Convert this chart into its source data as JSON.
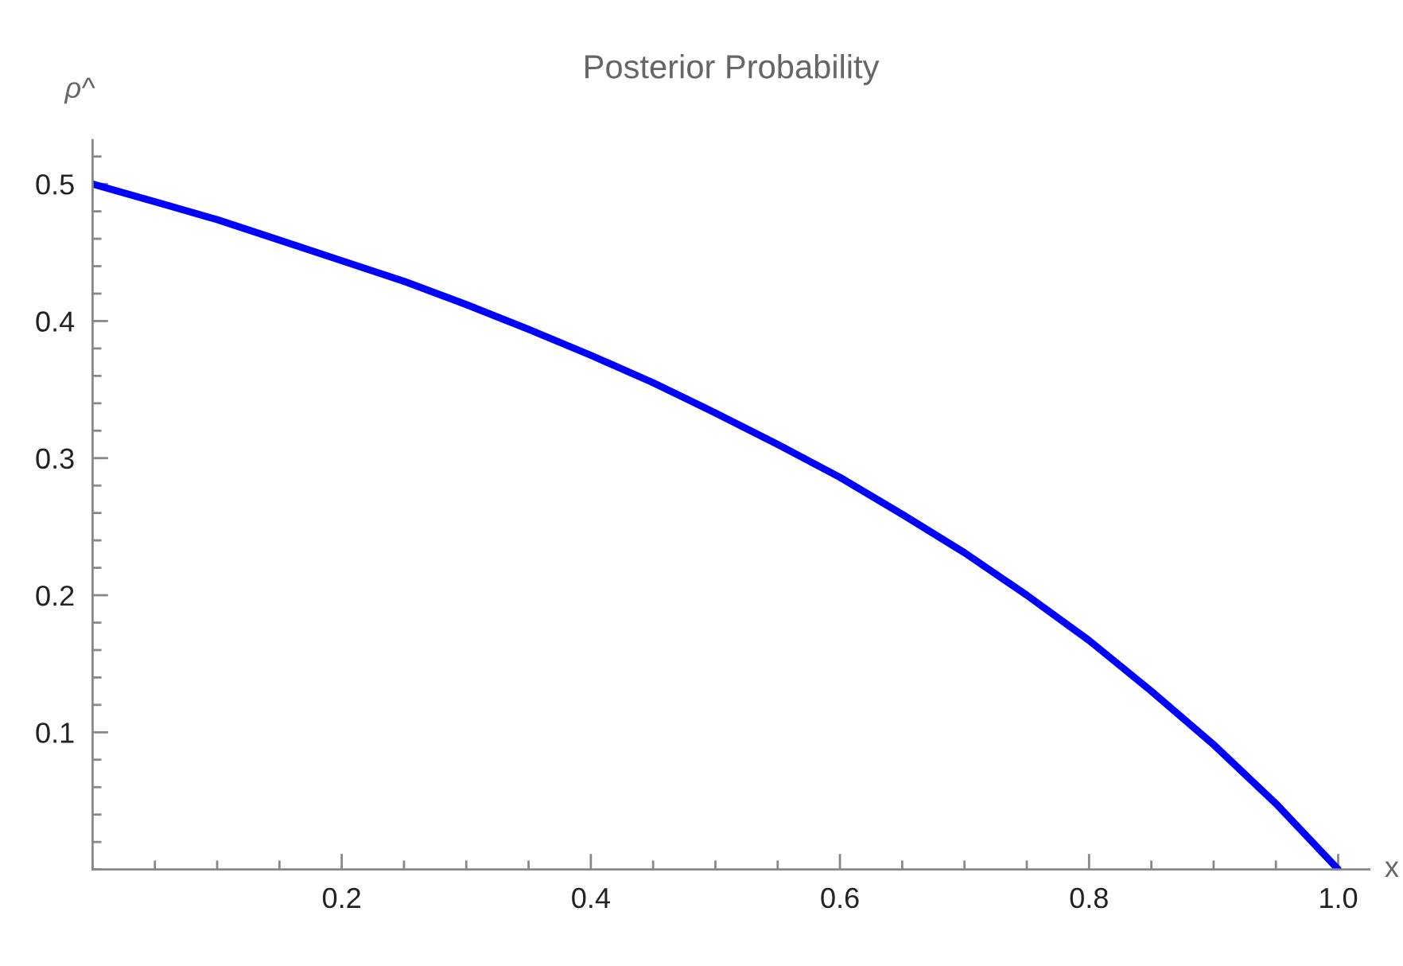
{
  "chart_data": {
    "type": "line",
    "title": "Posterior Probability",
    "xlabel": "x",
    "ylabel": "ρ^",
    "x": [
      0,
      0.05,
      0.1,
      0.15,
      0.2,
      0.25,
      0.3,
      0.35,
      0.4,
      0.45,
      0.5,
      0.55,
      0.6,
      0.65,
      0.7,
      0.75,
      0.8,
      0.85,
      0.9,
      0.95,
      1.0
    ],
    "series": [
      {
        "color": "#0000ff",
        "values": [
          0.5,
          0.487,
          0.474,
          0.459,
          0.444,
          0.429,
          0.412,
          0.394,
          0.375,
          0.355,
          0.333,
          0.31,
          0.286,
          0.259,
          0.231,
          0.2,
          0.167,
          0.13,
          0.091,
          0.048,
          0.0
        ]
      }
    ],
    "xlim": [
      0,
      1.025
    ],
    "ylim": [
      0,
      0.532
    ],
    "xticks": [
      0.2,
      0.4,
      0.6,
      {
        "value": 0.8,
        "label": "0.8"
      },
      {
        "value": 1.0,
        "label": "1.0"
      }
    ],
    "yticks": [
      0.1,
      0.2,
      0.3,
      0.4,
      0.5
    ],
    "grid": false,
    "marker": "none",
    "line_style": "solid"
  }
}
